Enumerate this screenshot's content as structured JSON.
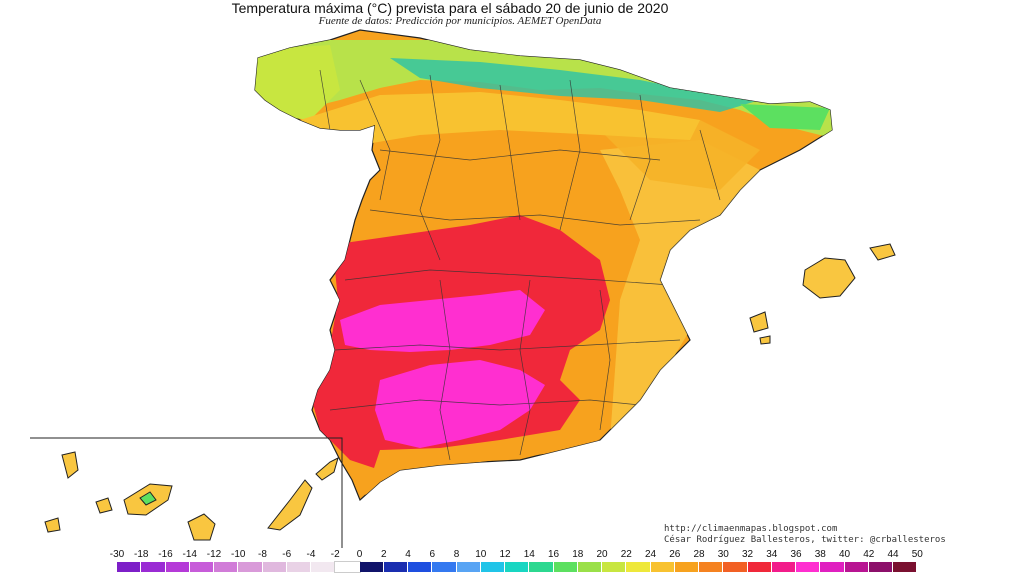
{
  "title": "Temperatura máxima (°C) prevista para el sábado 20 de junio de 2020",
  "subtitle": "Fuente de datos: Predicción por municipios. AEMET OpenData",
  "credits": {
    "blog": "http://climaenmapas.blogspot.com",
    "author": "César Rodríguez Ballesteros, twitter: @crballesteros"
  },
  "map": {
    "region": "Spain",
    "inset": "Canary Islands",
    "colors": {
      "peninsula_base": "#f7a21e",
      "north_coast": "#b8e24a",
      "cool_mountains": "#2bc3a8",
      "hot_zone": "#f0283a",
      "very_hot_zone": "#ff2fd0",
      "coast_warm": "#f9c640",
      "outline": "#222222"
    }
  },
  "legend": {
    "labels": [
      "-30",
      "-18",
      "-16",
      "-14",
      "-12",
      "-10",
      "-8",
      "-6",
      "-4",
      "-2",
      "0",
      "2",
      "4",
      "6",
      "8",
      "10",
      "12",
      "14",
      "16",
      "18",
      "20",
      "22",
      "24",
      "26",
      "28",
      "30",
      "32",
      "34",
      "36",
      "38",
      "40",
      "42",
      "44",
      "50"
    ],
    "colors": [
      "#7d1fc8",
      "#9a2bd4",
      "#b53ad8",
      "#c75cd9",
      "#d17cd8",
      "#d99ad9",
      "#e0b8de",
      "#e9d2e6",
      "#f2e8f0",
      "#ffffff",
      "#10136a",
      "#1a2eb0",
      "#1e4fe0",
      "#3479f0",
      "#58a4f4",
      "#20c4e8",
      "#18d6c2",
      "#2cd890",
      "#5ce060",
      "#9ae048",
      "#c8e640",
      "#eee83a",
      "#f8c230",
      "#f7a21e",
      "#f58220",
      "#f26024",
      "#f0283a",
      "#f21c8a",
      "#ff2fd0",
      "#e020c0",
      "#b81492",
      "#8c0f6a",
      "#7a1030"
    ]
  }
}
